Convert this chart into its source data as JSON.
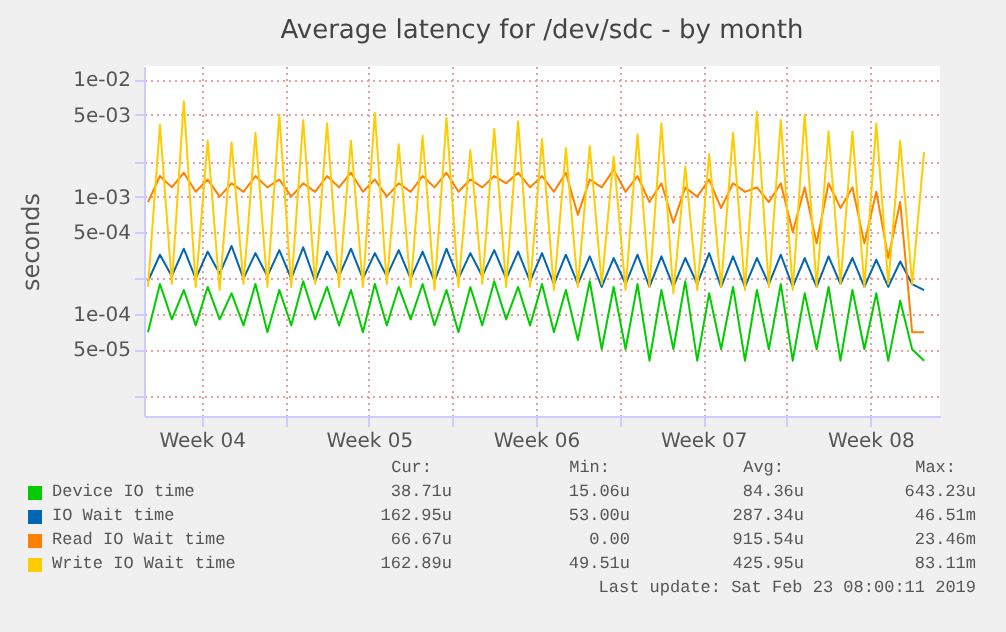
{
  "chart_data": {
    "type": "line",
    "title": "Average latency for /dev/sdc - by month",
    "ylabel": "seconds",
    "log": "y",
    "grid": true,
    "legend": "bottom",
    "ylim": [
      1.35e-05,
      0.013
    ],
    "yticks": [
      {
        "value": 0.01,
        "label": "1e-02"
      },
      {
        "value": 0.005,
        "label": "5e-03"
      },
      {
        "value": 0.001,
        "label": "1e-03"
      },
      {
        "value": 0.0005,
        "label": "5e-04"
      },
      {
        "value": 0.0001,
        "label": "1e-04"
      },
      {
        "value": 5e-05,
        "label": "5e-05"
      },
      {
        "value": 0.002,
        "label": null
      },
      {
        "value": 0.0002,
        "label": null
      },
      {
        "value": 2e-05,
        "label": null
      }
    ],
    "xlim": [
      "2019-01-22T02:00",
      "2019-02-24T10:00"
    ],
    "xticks": [
      {
        "value": "2019-01-24T12:00",
        "label": "Week 04"
      },
      {
        "value": "2019-01-31T12:00",
        "label": "Week 05"
      },
      {
        "value": "2019-02-07T12:00",
        "label": "Week 06"
      },
      {
        "value": "2019-02-14T12:00",
        "label": "Week 07"
      },
      {
        "value": "2019-02-21T12:00",
        "label": "Week 08"
      },
      {
        "value": "2019-01-28",
        "label": null
      },
      {
        "value": "2019-02-04",
        "label": null
      },
      {
        "value": "2019-02-11",
        "label": null
      },
      {
        "value": "2019-02-18",
        "label": null
      }
    ],
    "x": [
      "2019-01-22T06:00",
      "2019-01-22T18:00",
      "2019-01-23T06:00",
      "2019-01-23T18:00",
      "2019-01-24T06:00",
      "2019-01-24T18:00",
      "2019-01-25T06:00",
      "2019-01-25T18:00",
      "2019-01-26T06:00",
      "2019-01-26T18:00",
      "2019-01-27T06:00",
      "2019-01-27T18:00",
      "2019-01-28T06:00",
      "2019-01-28T18:00",
      "2019-01-29T06:00",
      "2019-01-29T18:00",
      "2019-01-30T06:00",
      "2019-01-30T18:00",
      "2019-01-31T06:00",
      "2019-01-31T18:00",
      "2019-02-01T06:00",
      "2019-02-01T18:00",
      "2019-02-02T06:00",
      "2019-02-02T18:00",
      "2019-02-03T06:00",
      "2019-02-03T18:00",
      "2019-02-04T06:00",
      "2019-02-04T18:00",
      "2019-02-05T06:00",
      "2019-02-05T18:00",
      "2019-02-06T06:00",
      "2019-02-06T18:00",
      "2019-02-07T06:00",
      "2019-02-07T18:00",
      "2019-02-08T06:00",
      "2019-02-08T18:00",
      "2019-02-09T06:00",
      "2019-02-09T18:00",
      "2019-02-10T06:00",
      "2019-02-10T18:00",
      "2019-02-11T06:00",
      "2019-02-11T18:00",
      "2019-02-12T06:00",
      "2019-02-12T18:00",
      "2019-02-13T06:00",
      "2019-02-13T18:00",
      "2019-02-14T06:00",
      "2019-02-14T18:00",
      "2019-02-15T06:00",
      "2019-02-15T18:00",
      "2019-02-16T06:00",
      "2019-02-16T18:00",
      "2019-02-17T06:00",
      "2019-02-17T18:00",
      "2019-02-18T06:00",
      "2019-02-18T18:00",
      "2019-02-19T06:00",
      "2019-02-19T18:00",
      "2019-02-20T06:00",
      "2019-02-20T18:00",
      "2019-02-21T06:00",
      "2019-02-21T18:00",
      "2019-02-22T06:00",
      "2019-02-22T18:00",
      "2019-02-23T06:00",
      "2019-02-23T18:00"
    ],
    "series": [
      {
        "name": "Device IO time",
        "color": "#00cc00",
        "values": [
          7e-05,
          0.00018,
          9e-05,
          0.00016,
          8e-05,
          0.00017,
          9e-05,
          0.00015,
          8e-05,
          0.00018,
          7e-05,
          0.00016,
          8e-05,
          0.00019,
          9e-05,
          0.00017,
          8e-05,
          0.00016,
          7e-05,
          0.00018,
          8e-05,
          0.00017,
          9e-05,
          0.00018,
          8e-05,
          0.00016,
          7e-05,
          0.00017,
          8e-05,
          0.00019,
          9e-05,
          0.00017,
          8e-05,
          0.00018,
          7e-05,
          0.00016,
          6e-05,
          0.00019,
          5e-05,
          0.00017,
          5e-05,
          0.00018,
          4e-05,
          0.00016,
          5e-05,
          0.00019,
          4e-05,
          0.00015,
          5e-05,
          0.00017,
          4e-05,
          0.00016,
          5e-05,
          0.00018,
          4e-05,
          0.00015,
          5e-05,
          0.00017,
          4e-05,
          0.00016,
          5e-05,
          0.00015,
          4e-05,
          0.00013,
          5e-05,
          4e-05
        ]
      },
      {
        "name": "IO Wait time",
        "color": "#0066b3",
        "values": [
          0.00019,
          0.00032,
          0.00021,
          0.00036,
          0.0002,
          0.00034,
          0.00022,
          0.00038,
          0.0002,
          0.00033,
          0.00021,
          0.00035,
          0.0002,
          0.00037,
          0.00019,
          0.00034,
          0.00021,
          0.00036,
          0.0002,
          0.00033,
          0.00021,
          0.00035,
          0.0002,
          0.00034,
          0.00019,
          0.00036,
          0.0002,
          0.00033,
          0.00021,
          0.00035,
          0.0002,
          0.00034,
          0.00019,
          0.00033,
          0.00018,
          0.00032,
          0.00018,
          0.00031,
          0.00017,
          0.0003,
          0.00018,
          0.00032,
          0.00017,
          0.00031,
          0.00017,
          0.0003,
          0.00018,
          0.00033,
          0.00017,
          0.00031,
          0.00017,
          0.0003,
          0.00018,
          0.00032,
          0.00017,
          0.0003,
          0.00017,
          0.00031,
          0.00018,
          0.0003,
          0.00017,
          0.00029,
          0.00017,
          0.00028,
          0.00018,
          0.00016
        ]
      },
      {
        "name": "Read IO Wait time",
        "color": "#ff8000",
        "values": [
          0.0009,
          0.0015,
          0.0012,
          0.0016,
          0.0011,
          0.0014,
          0.001,
          0.0013,
          0.0011,
          0.0015,
          0.0012,
          0.0014,
          0.001,
          0.0013,
          0.0011,
          0.0015,
          0.0012,
          0.0016,
          0.0011,
          0.0014,
          0.001,
          0.0013,
          0.0011,
          0.0015,
          0.0012,
          0.0016,
          0.0011,
          0.0014,
          0.0012,
          0.0015,
          0.0013,
          0.0016,
          0.0012,
          0.0015,
          0.0011,
          0.0016,
          0.0007,
          0.0014,
          0.0012,
          0.0017,
          0.0011,
          0.0015,
          0.0009,
          0.0013,
          0.0006,
          0.0012,
          0.001,
          0.0014,
          0.0008,
          0.0013,
          0.0011,
          0.0012,
          0.0009,
          0.0013,
          0.0005,
          0.0012,
          0.0004,
          0.0013,
          0.0008,
          0.0012,
          0.0004,
          0.0011,
          0.0003,
          0.0009,
          7e-05,
          7e-05
        ]
      },
      {
        "name": "Write IO Wait time",
        "color": "#ffcc00",
        "values": [
          0.00017,
          0.0041,
          0.00018,
          0.0065,
          0.00017,
          0.003,
          0.00016,
          0.0029,
          0.00018,
          0.0035,
          0.00017,
          0.005,
          0.00017,
          0.0045,
          0.00018,
          0.0042,
          0.00017,
          0.003,
          0.00017,
          0.0052,
          0.00018,
          0.0028,
          0.00017,
          0.0033,
          0.00016,
          0.0047,
          0.00017,
          0.0025,
          0.00018,
          0.0038,
          0.00017,
          0.0044,
          0.00017,
          0.0031,
          0.00016,
          0.0026,
          0.00017,
          0.0027,
          0.00018,
          0.0022,
          0.00016,
          0.0034,
          0.00017,
          0.0042,
          0.00015,
          0.0018,
          0.00016,
          0.0023,
          0.00017,
          0.0035,
          0.00016,
          0.0053,
          0.00017,
          0.0045,
          0.00016,
          0.005,
          0.00017,
          0.0036,
          0.00018,
          0.0036,
          0.00017,
          0.0042,
          0.00018,
          0.003,
          0.00018,
          0.0024
        ]
      }
    ],
    "annotations": [
      "Cur:",
      "Min:",
      "Avg:",
      "Max:",
      "38.71u",
      "15.06u",
      "84.36u",
      "643.23u",
      "162.95u",
      "53.00u",
      "287.34u",
      "46.51m",
      "66.67u",
      "0.00",
      "915.54u",
      "23.46m",
      "162.89u",
      "49.51u",
      "425.95u",
      "83.11m",
      "Last update: Sat Feb 23 08:00:11 2019"
    ]
  }
}
